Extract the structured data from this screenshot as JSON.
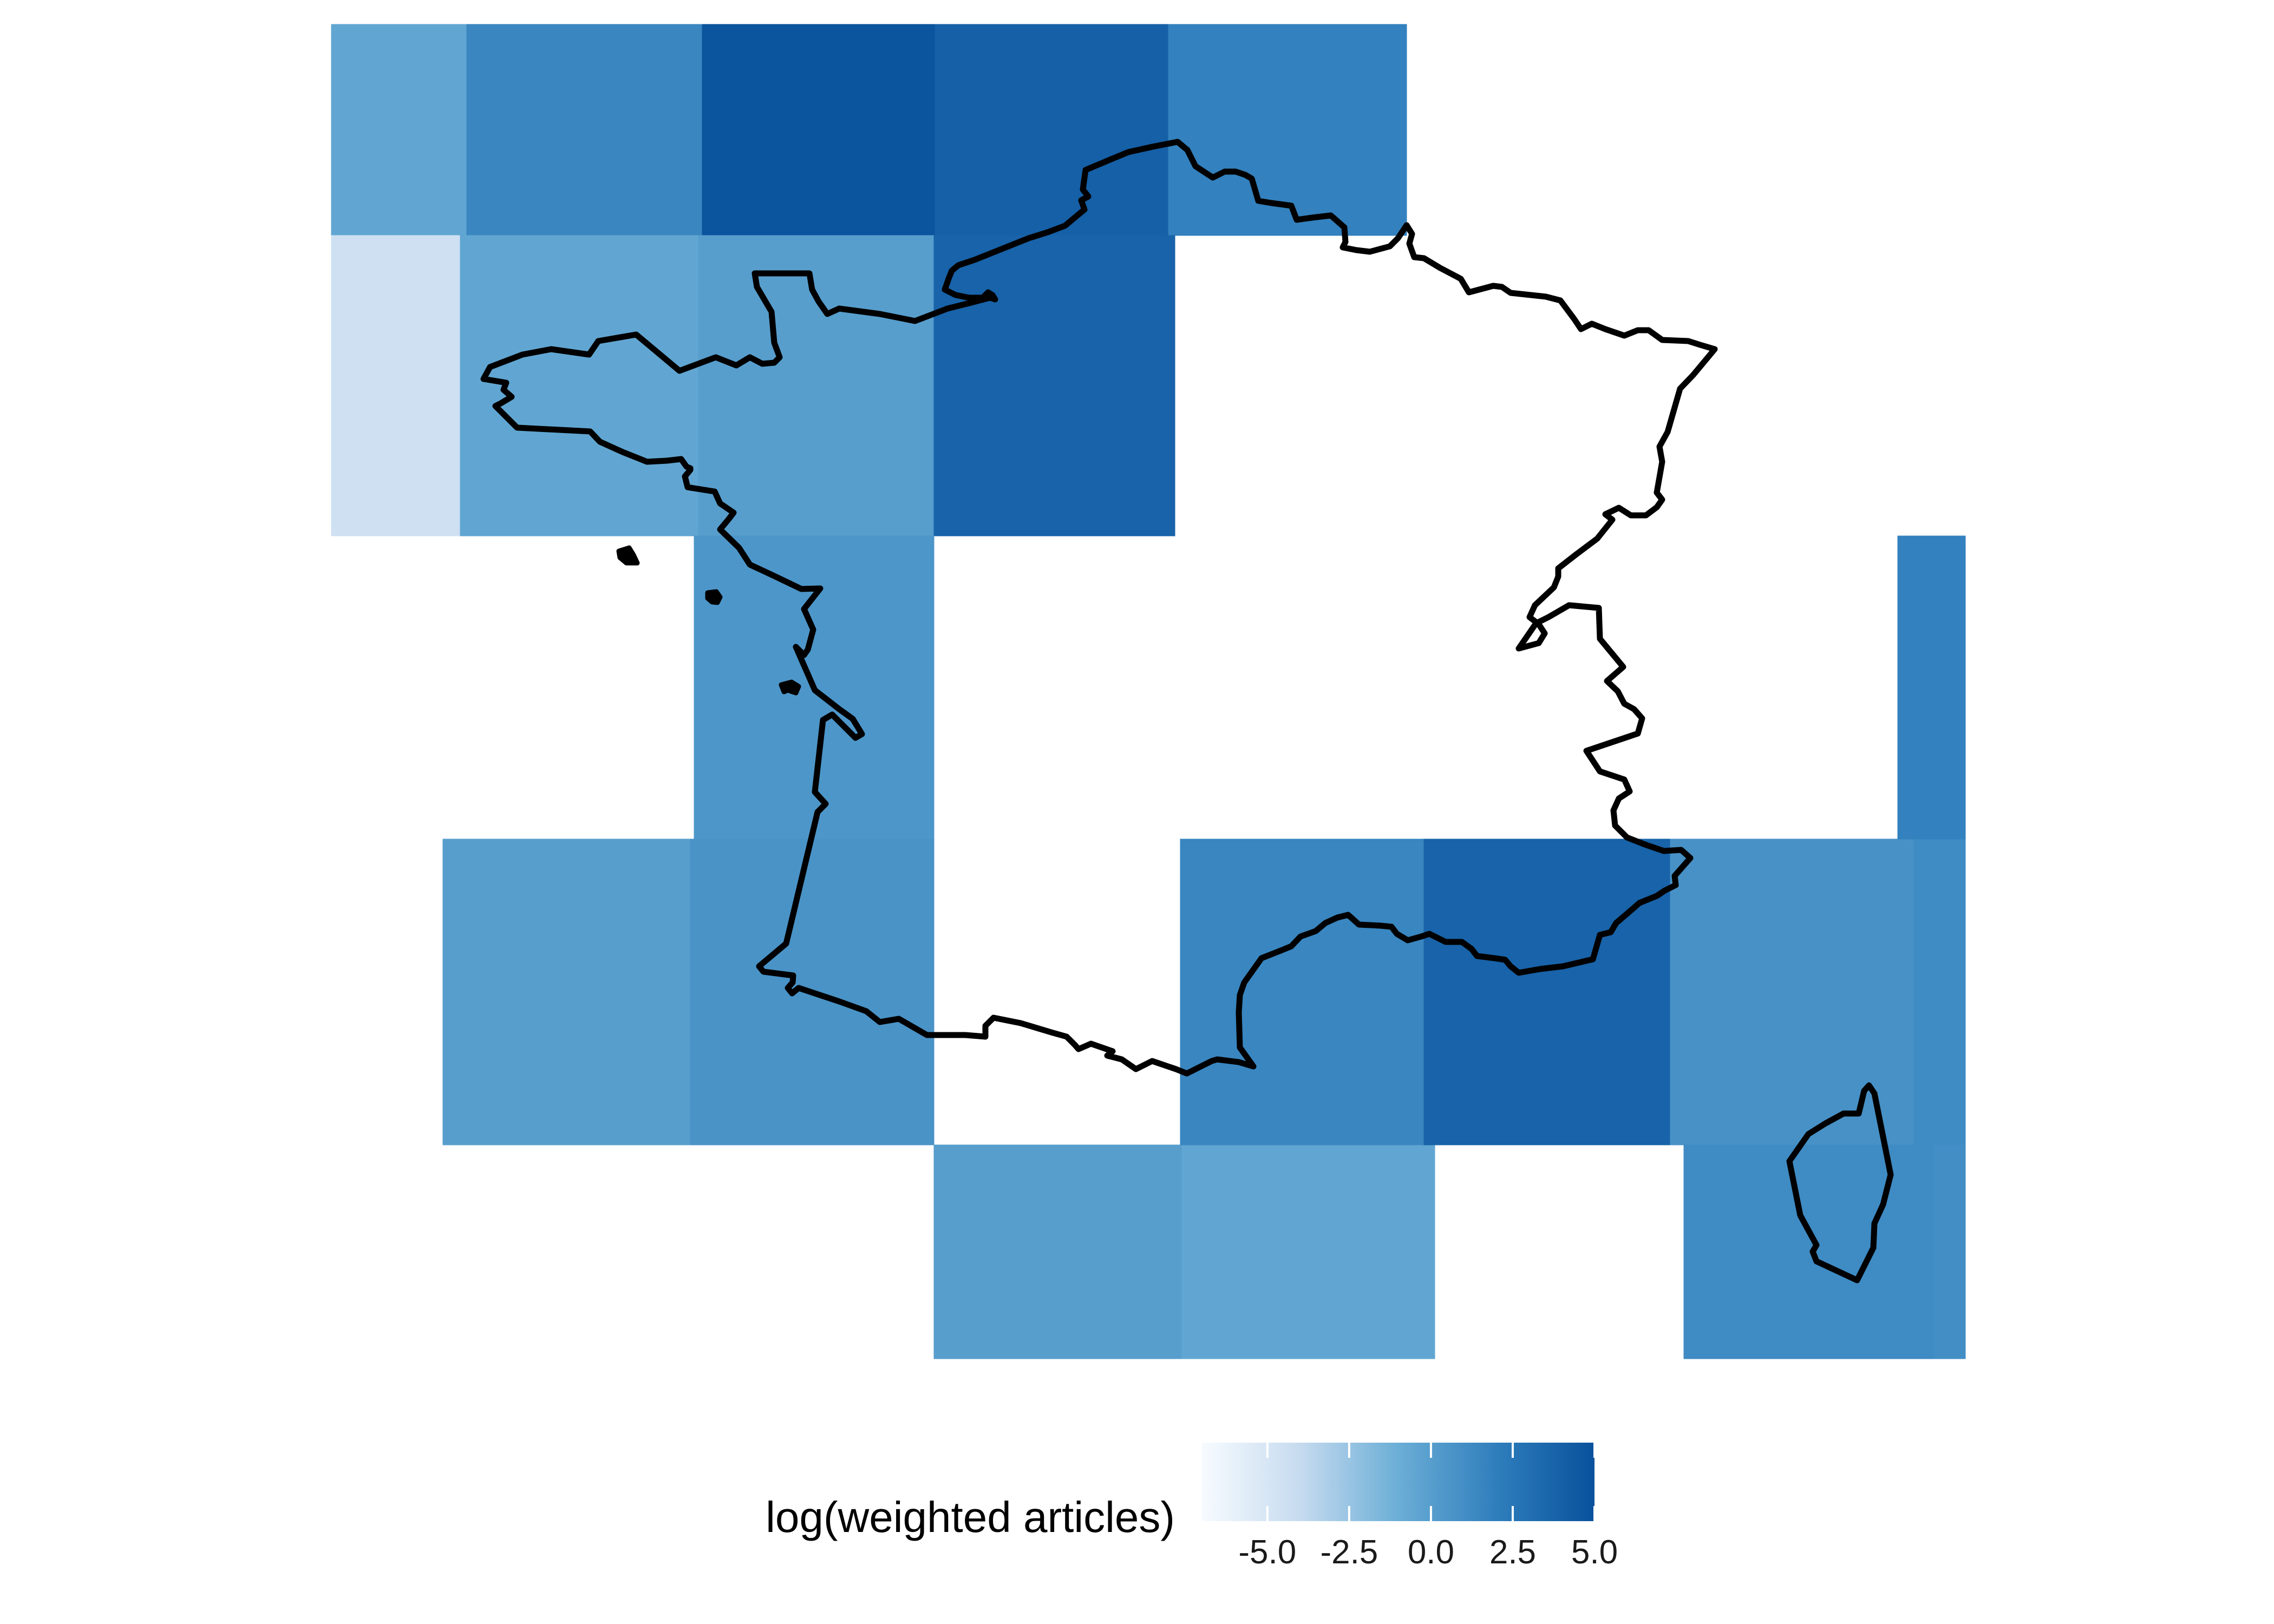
{
  "chart_data": {
    "type": "heatmap",
    "subject": "France map grid",
    "legend": {
      "title": "log(weighted articles)",
      "ticks": [
        -5.0,
        -2.5,
        0.0,
        2.5,
        5.0
      ],
      "tick_labels": [
        "-5.0",
        "-2.5",
        "0.0",
        "2.5",
        "5.0"
      ],
      "range": [
        -7.0,
        5.0
      ],
      "low_color": "#f7fbff",
      "mid_color": "#6baed6",
      "high_color": "#08519c",
      "placement": "bottom"
    },
    "cells": [
      {
        "lon": [
          -5,
          -4
        ],
        "lat": [
          50,
          51
        ],
        "value": -0.5
      },
      {
        "lon": [
          -4,
          -2
        ],
        "lat": [
          50,
          51
        ],
        "value": 1.5
      },
      {
        "lon": [
          -2,
          0
        ],
        "lat": [
          50,
          51
        ],
        "value": 4.8
      },
      {
        "lon": [
          0,
          2
        ],
        "lat": [
          50,
          51
        ],
        "value": 4.0
      },
      {
        "lon": [
          2,
          4
        ],
        "lat": [
          50,
          51
        ],
        "value": 1.8
      },
      {
        "lon": [
          -5,
          -4
        ],
        "lat": [
          48.5,
          50
        ],
        "value": -4.5
      },
      {
        "lon": [
          -4,
          -2
        ],
        "lat": [
          48.5,
          50
        ],
        "value": -0.5
      },
      {
        "lon": [
          -2,
          0
        ],
        "lat": [
          48.5,
          50
        ],
        "value": 0.0
      },
      {
        "lon": [
          0,
          2
        ],
        "lat": [
          48.5,
          50
        ],
        "value": 3.8
      },
      {
        "lon": [
          -2,
          0
        ],
        "lat": [
          46.5,
          48.5
        ],
        "value": 0.5
      },
      {
        "lon": [
          -3,
          -2
        ],
        "lat": [
          44.5,
          46.5
        ],
        "value": 0.0
      },
      {
        "lon": [
          -2,
          0
        ],
        "lat": [
          44.5,
          46.5
        ],
        "value": 0.7
      },
      {
        "lon": [
          0,
          2
        ],
        "lat": [
          43,
          44.5
        ],
        "value": 0.0
      },
      {
        "lon": [
          2,
          4
        ],
        "lat": [
          43,
          44.5
        ],
        "value": -0.5
      },
      {
        "lon": [
          2,
          4
        ],
        "lat": [
          44.5,
          46.5
        ],
        "value": 1.5
      },
      {
        "lon": [
          4,
          6
        ],
        "lat": [
          44.5,
          46.5
        ],
        "value": 3.8
      },
      {
        "lon": [
          6,
          8
        ],
        "lat": [
          44.5,
          46.5
        ],
        "value": 0.8
      },
      {
        "lon": [
          8,
          8.5
        ],
        "lat": [
          44.5,
          46.5
        ],
        "value": 1.2
      },
      {
        "lon": [
          8,
          8.5
        ],
        "lat": [
          46.5,
          48.5
        ],
        "value": 1.8
      },
      {
        "lon": [
          7,
          8
        ],
        "lat": [
          43,
          44.5
        ],
        "value": 1.2
      },
      {
        "lon": [
          8,
          8.5
        ],
        "lat": [
          43,
          44.5
        ],
        "value": 1.0
      }
    ]
  }
}
